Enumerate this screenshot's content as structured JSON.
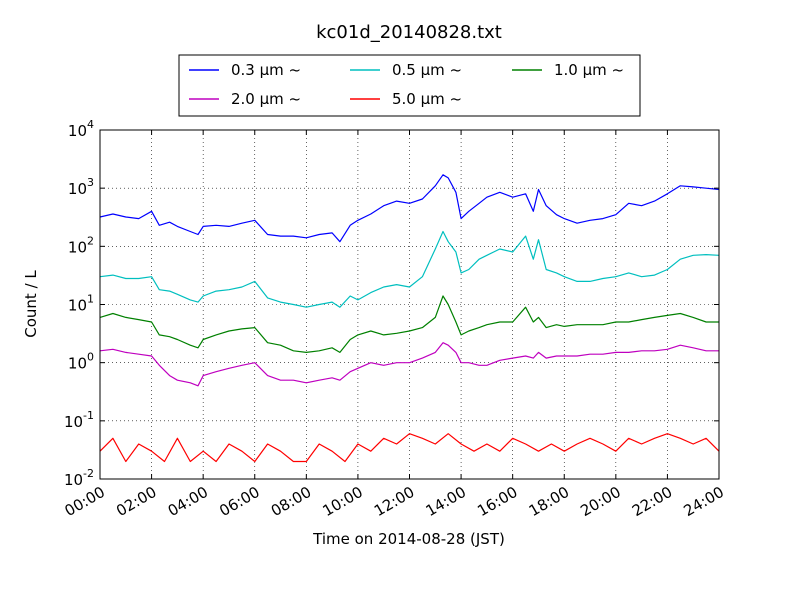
{
  "chart_data": {
    "type": "line",
    "title": "kc01d_20140828.txt",
    "xlabel": "Time on 2014-08-28 (JST)",
    "ylabel": "Count / L",
    "x_unit": "hour",
    "xlim": [
      0,
      24
    ],
    "ylim": [
      0.01,
      10000
    ],
    "yscale": "log",
    "grid": true,
    "legend_position": "top-center",
    "x_tick_labels": [
      "00:00",
      "02:00",
      "04:00",
      "06:00",
      "08:00",
      "10:00",
      "12:00",
      "14:00",
      "16:00",
      "18:00",
      "20:00",
      "22:00",
      "24:00"
    ],
    "y_ticks": [
      {
        "base": "10",
        "exp": "-2"
      },
      {
        "base": "10",
        "exp": "-1"
      },
      {
        "base": "10",
        "exp": "0"
      },
      {
        "base": "10",
        "exp": "1"
      },
      {
        "base": "10",
        "exp": "2"
      },
      {
        "base": "10",
        "exp": "3"
      },
      {
        "base": "10",
        "exp": "4"
      }
    ],
    "series": [
      {
        "name": "0.3 μm ~",
        "color": "#0000ff",
        "x": [
          0,
          0.5,
          1,
          1.5,
          2,
          2.3,
          2.7,
          3,
          3.5,
          3.8,
          4,
          4.5,
          5,
          5.5,
          6,
          6.5,
          7,
          7.5,
          8,
          8.5,
          9,
          9.3,
          9.7,
          10,
          10.5,
          11,
          11.5,
          12,
          12.5,
          13,
          13.3,
          13.5,
          13.8,
          14,
          14.3,
          14.7,
          15,
          15.5,
          16,
          16.5,
          16.8,
          17,
          17.3,
          17.7,
          18,
          18.5,
          19,
          19.5,
          20,
          20.5,
          21,
          21.5,
          22,
          22.5,
          23,
          23.5,
          24
        ],
        "y": [
          320,
          360,
          320,
          300,
          400,
          230,
          260,
          220,
          180,
          160,
          220,
          230,
          220,
          250,
          280,
          160,
          150,
          150,
          140,
          160,
          170,
          120,
          230,
          280,
          360,
          500,
          600,
          550,
          650,
          1100,
          1700,
          1500,
          850,
          300,
          400,
          550,
          700,
          850,
          700,
          800,
          400,
          950,
          500,
          350,
          300,
          250,
          280,
          300,
          350,
          550,
          500,
          600,
          800,
          1100,
          1050,
          1000,
          950
        ]
      },
      {
        "name": "0.5 μm ~",
        "color": "#00bfbf",
        "x": [
          0,
          0.5,
          1,
          1.5,
          2,
          2.3,
          2.7,
          3,
          3.5,
          3.8,
          4,
          4.5,
          5,
          5.5,
          6,
          6.5,
          7,
          7.5,
          8,
          8.5,
          9,
          9.3,
          9.7,
          10,
          10.5,
          11,
          11.5,
          12,
          12.5,
          13,
          13.3,
          13.5,
          13.8,
          14,
          14.3,
          14.7,
          15,
          15.5,
          16,
          16.5,
          16.8,
          17,
          17.3,
          17.7,
          18,
          18.5,
          19,
          19.5,
          20,
          20.5,
          21,
          21.5,
          22,
          22.5,
          23,
          23.5,
          24
        ],
        "y": [
          30,
          32,
          28,
          28,
          30,
          18,
          17,
          15,
          12,
          11,
          14,
          17,
          18,
          20,
          25,
          13,
          11,
          10,
          9,
          10,
          11,
          9,
          14,
          12,
          16,
          20,
          22,
          20,
          30,
          90,
          180,
          120,
          80,
          35,
          40,
          60,
          70,
          90,
          80,
          150,
          60,
          130,
          40,
          35,
          30,
          25,
          25,
          28,
          30,
          35,
          30,
          32,
          40,
          60,
          70,
          72,
          70
        ]
      },
      {
        "name": "1.0 μm ~",
        "color": "#008000",
        "x": [
          0,
          0.5,
          1,
          1.5,
          2,
          2.3,
          2.7,
          3,
          3.5,
          3.8,
          4,
          4.5,
          5,
          5.5,
          6,
          6.5,
          7,
          7.5,
          8,
          8.5,
          9,
          9.3,
          9.7,
          10,
          10.5,
          11,
          11.5,
          12,
          12.5,
          13,
          13.3,
          13.5,
          13.8,
          14,
          14.3,
          14.7,
          15,
          15.5,
          16,
          16.5,
          16.8,
          17,
          17.3,
          17.7,
          18,
          18.5,
          19,
          19.5,
          20,
          20.5,
          21,
          21.5,
          22,
          22.5,
          23,
          23.5,
          24
        ],
        "y": [
          6,
          7,
          6,
          5.5,
          5,
          3,
          2.8,
          2.5,
          2,
          1.8,
          2.5,
          3,
          3.5,
          3.8,
          4,
          2.2,
          2,
          1.6,
          1.5,
          1.6,
          1.8,
          1.5,
          2.5,
          3,
          3.5,
          3,
          3.2,
          3.5,
          4,
          6,
          14,
          10,
          5,
          3,
          3.5,
          4,
          4.5,
          5,
          5,
          9,
          5,
          6,
          4,
          4.5,
          4.2,
          4.5,
          4.5,
          4.5,
          5,
          5,
          5.5,
          6,
          6.5,
          7,
          6,
          5,
          5
        ]
      },
      {
        "name": "2.0 μm ~",
        "color": "#bf00bf",
        "x": [
          0,
          0.5,
          1,
          1.5,
          2,
          2.3,
          2.7,
          3,
          3.5,
          3.8,
          4,
          4.5,
          5,
          5.5,
          6,
          6.5,
          7,
          7.5,
          8,
          8.5,
          9,
          9.3,
          9.7,
          10,
          10.5,
          11,
          11.5,
          12,
          12.5,
          13,
          13.3,
          13.5,
          13.8,
          14,
          14.3,
          14.7,
          15,
          15.5,
          16,
          16.5,
          16.8,
          17,
          17.3,
          17.7,
          18,
          18.5,
          19,
          19.5,
          20,
          20.5,
          21,
          21.5,
          22,
          22.5,
          23,
          23.5,
          24
        ],
        "y": [
          1.6,
          1.7,
          1.5,
          1.4,
          1.3,
          0.9,
          0.6,
          0.5,
          0.45,
          0.4,
          0.6,
          0.7,
          0.8,
          0.9,
          1,
          0.6,
          0.5,
          0.5,
          0.45,
          0.5,
          0.55,
          0.5,
          0.7,
          0.8,
          1,
          0.9,
          1,
          1,
          1.2,
          1.5,
          2.2,
          2,
          1.5,
          1,
          1,
          0.9,
          0.9,
          1.1,
          1.2,
          1.3,
          1.2,
          1.5,
          1.2,
          1.3,
          1.3,
          1.3,
          1.4,
          1.4,
          1.5,
          1.5,
          1.6,
          1.6,
          1.7,
          2,
          1.8,
          1.6,
          1.6
        ]
      },
      {
        "name": "5.0 μm ~",
        "color": "#ff0000",
        "x": [
          0,
          0.5,
          1,
          1.5,
          2,
          2.5,
          3,
          3.5,
          4,
          4.5,
          5,
          5.5,
          6,
          6.5,
          7,
          7.5,
          8,
          8.5,
          9,
          9.5,
          10,
          10.5,
          11,
          11.5,
          12,
          12.5,
          13,
          13.5,
          14,
          14.5,
          15,
          15.5,
          16,
          16.5,
          17,
          17.5,
          18,
          18.5,
          19,
          19.5,
          20,
          20.5,
          21,
          21.5,
          22,
          22.5,
          23,
          23.5,
          24
        ],
        "y": [
          0.03,
          0.05,
          0.02,
          0.04,
          0.03,
          0.02,
          0.05,
          0.02,
          0.03,
          0.02,
          0.04,
          0.03,
          0.02,
          0.04,
          0.03,
          0.02,
          0.02,
          0.04,
          0.03,
          0.02,
          0.04,
          0.03,
          0.05,
          0.04,
          0.06,
          0.05,
          0.04,
          0.06,
          0.04,
          0.03,
          0.04,
          0.03,
          0.05,
          0.04,
          0.03,
          0.04,
          0.03,
          0.04,
          0.05,
          0.04,
          0.03,
          0.05,
          0.04,
          0.05,
          0.06,
          0.05,
          0.04,
          0.05,
          0.03
        ]
      }
    ]
  }
}
